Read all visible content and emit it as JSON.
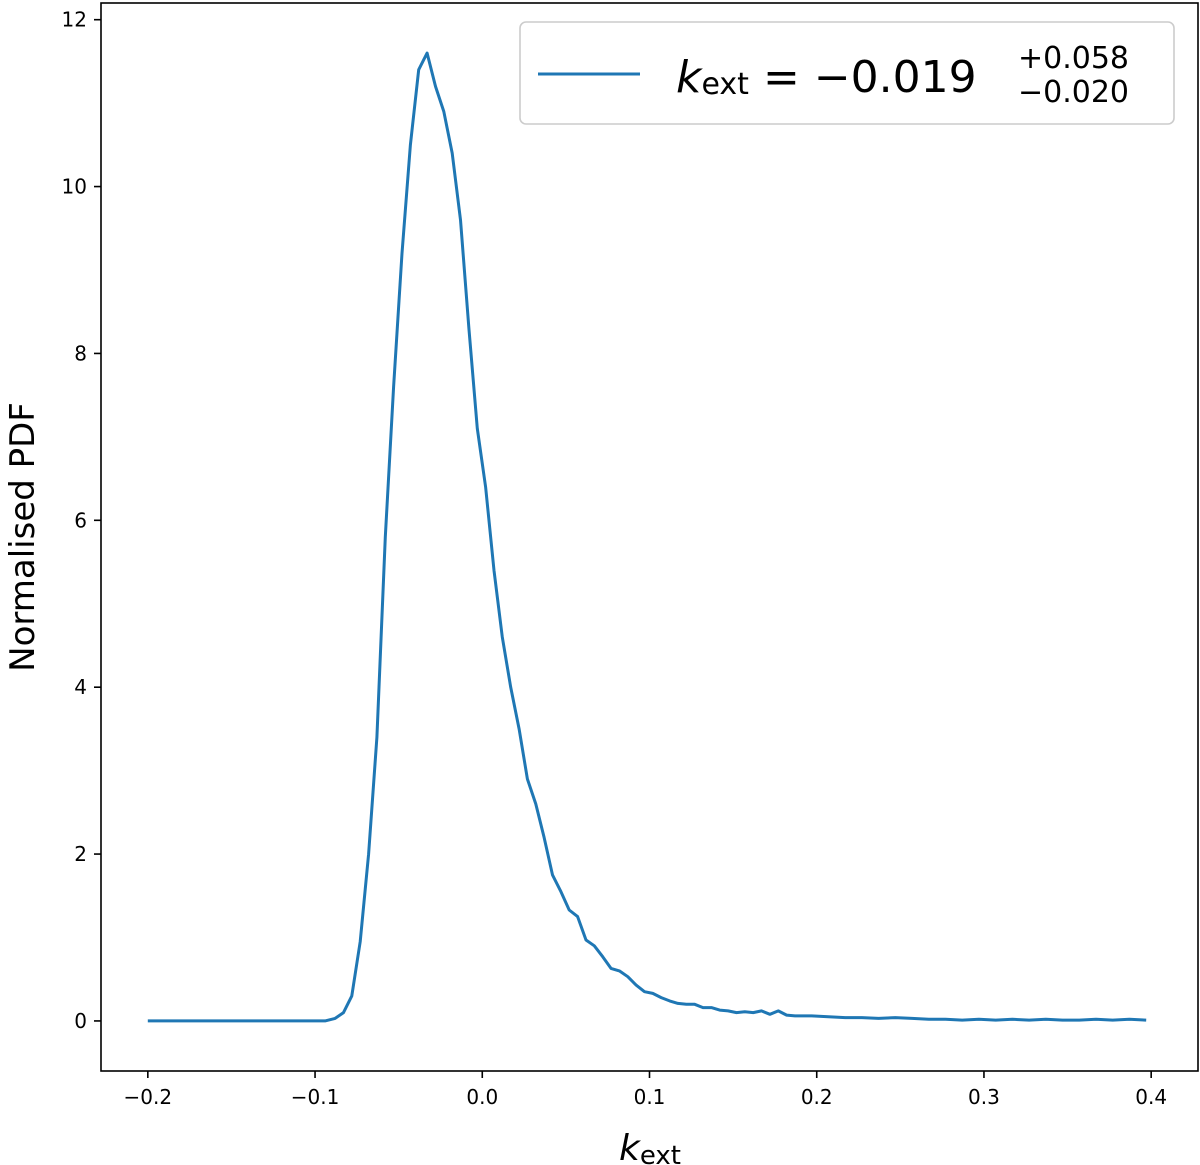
{
  "chart_data": {
    "type": "line",
    "xlabel": {
      "symbol": "k",
      "subscript": "ext"
    },
    "ylabel": "Normalised PDF",
    "xlim": [
      -0.228,
      0.428
    ],
    "ylim": [
      -0.6,
      12.2
    ],
    "x_ticks": [
      -0.2,
      -0.1,
      0.0,
      0.1,
      0.2,
      0.3,
      0.4
    ],
    "x_tick_labels": [
      "−0.2",
      "−0.1",
      "0.0",
      "0.1",
      "0.2",
      "0.3",
      "0.4"
    ],
    "y_ticks": [
      0,
      2,
      4,
      6,
      8,
      10,
      12
    ],
    "y_tick_labels": [
      "0",
      "2",
      "4",
      "6",
      "8",
      "10",
      "12"
    ],
    "grid": false,
    "legend_position": "top-right",
    "legend": {
      "symbol": "k",
      "subscript": "ext",
      "equals": "=",
      "value": "−0.019",
      "upper": "+0.058",
      "lower": "−0.020"
    },
    "series": [
      {
        "color": "#1f77b4",
        "points": [
          [
            -0.2,
            0.0
          ],
          [
            -0.18,
            0.0
          ],
          [
            -0.16,
            0.0
          ],
          [
            -0.14,
            0.0
          ],
          [
            -0.12,
            0.0
          ],
          [
            -0.1,
            0.0
          ],
          [
            -0.094,
            0.0
          ],
          [
            -0.088,
            0.03
          ],
          [
            -0.083,
            0.1
          ],
          [
            -0.078,
            0.3
          ],
          [
            -0.073,
            0.95
          ],
          [
            -0.068,
            2.0
          ],
          [
            -0.063,
            3.4
          ],
          [
            -0.058,
            5.8
          ],
          [
            -0.053,
            7.6
          ],
          [
            -0.048,
            9.2
          ],
          [
            -0.043,
            10.5
          ],
          [
            -0.038,
            11.4
          ],
          [
            -0.033,
            11.6
          ],
          [
            -0.028,
            11.2
          ],
          [
            -0.023,
            10.9
          ],
          [
            -0.018,
            10.4
          ],
          [
            -0.013,
            9.6
          ],
          [
            -0.008,
            8.3
          ],
          [
            -0.003,
            7.1
          ],
          [
            0.002,
            6.4
          ],
          [
            0.007,
            5.4
          ],
          [
            0.012,
            4.6
          ],
          [
            0.017,
            4.0
          ],
          [
            0.022,
            3.5
          ],
          [
            0.027,
            2.9
          ],
          [
            0.032,
            2.6
          ],
          [
            0.037,
            2.2
          ],
          [
            0.042,
            1.75
          ],
          [
            0.047,
            1.55
          ],
          [
            0.052,
            1.33
          ],
          [
            0.057,
            1.25
          ],
          [
            0.062,
            0.97
          ],
          [
            0.067,
            0.9
          ],
          [
            0.072,
            0.77
          ],
          [
            0.077,
            0.63
          ],
          [
            0.082,
            0.6
          ],
          [
            0.087,
            0.53
          ],
          [
            0.092,
            0.43
          ],
          [
            0.097,
            0.35
          ],
          [
            0.102,
            0.33
          ],
          [
            0.107,
            0.28
          ],
          [
            0.112,
            0.24
          ],
          [
            0.117,
            0.21
          ],
          [
            0.122,
            0.2
          ],
          [
            0.127,
            0.2
          ],
          [
            0.132,
            0.16
          ],
          [
            0.137,
            0.16
          ],
          [
            0.142,
            0.13
          ],
          [
            0.147,
            0.12
          ],
          [
            0.152,
            0.1
          ],
          [
            0.157,
            0.11
          ],
          [
            0.162,
            0.1
          ],
          [
            0.167,
            0.12
          ],
          [
            0.172,
            0.08
          ],
          [
            0.177,
            0.12
          ],
          [
            0.182,
            0.07
          ],
          [
            0.187,
            0.06
          ],
          [
            0.197,
            0.06
          ],
          [
            0.207,
            0.05
          ],
          [
            0.217,
            0.04
          ],
          [
            0.227,
            0.04
          ],
          [
            0.237,
            0.03
          ],
          [
            0.247,
            0.04
          ],
          [
            0.257,
            0.03
          ],
          [
            0.267,
            0.02
          ],
          [
            0.277,
            0.02
          ],
          [
            0.287,
            0.01
          ],
          [
            0.297,
            0.02
          ],
          [
            0.307,
            0.01
          ],
          [
            0.317,
            0.02
          ],
          [
            0.327,
            0.01
          ],
          [
            0.337,
            0.02
          ],
          [
            0.347,
            0.01
          ],
          [
            0.357,
            0.01
          ],
          [
            0.367,
            0.02
          ],
          [
            0.377,
            0.01
          ],
          [
            0.387,
            0.02
          ],
          [
            0.397,
            0.01
          ]
        ]
      }
    ]
  }
}
